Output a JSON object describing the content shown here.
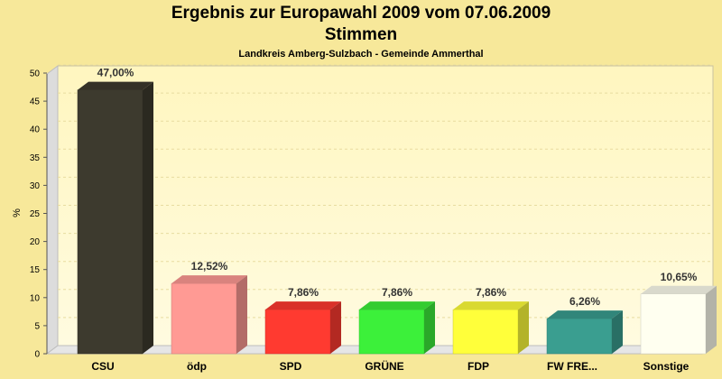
{
  "header": {
    "title": "Ergebnis zur Europawahl 2009 vom 07.06.2009",
    "subtitle": "Stimmen",
    "location": "Landkreis Amberg-Sulzbach - Gemeinde Ammerthal"
  },
  "chart_data": {
    "type": "bar",
    "title": "Ergebnis zur Europawahl 2009 vom 07.06.2009",
    "subtitle": "Stimmen",
    "xlabel": "",
    "ylabel": "%",
    "ylim": [
      0,
      50
    ],
    "yticks": [
      0,
      5,
      10,
      15,
      20,
      25,
      30,
      35,
      40,
      45,
      50
    ],
    "grid": true,
    "categories": [
      "CSU",
      "ödp",
      "SPD",
      "GRÜNE",
      "FDP",
      "FW FRE...",
      "Sonstige"
    ],
    "values": [
      47.0,
      12.52,
      7.86,
      7.86,
      7.86,
      6.26,
      10.65
    ],
    "data_labels": [
      "47,00%",
      "12,52%",
      "7,86%",
      "7,86%",
      "7,86%",
      "6,26%",
      "10,65%"
    ],
    "colors": [
      "#3d3a2e",
      "#ff9a94",
      "#ff3a30",
      "#3cf03a",
      "#ffff3a",
      "#3a9e90",
      "#fffff0"
    ]
  }
}
